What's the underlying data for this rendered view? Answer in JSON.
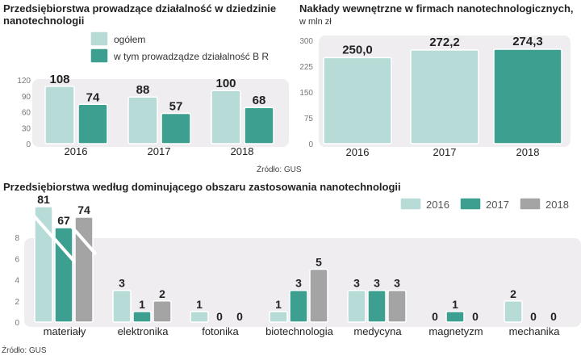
{
  "colors": {
    "light": "#b7dcd7",
    "dark": "#3c9f8f",
    "grey": "#a4a4a4",
    "panel": "#efedf0"
  },
  "chart_data": [
    {
      "type": "bar",
      "title": "Przedsiębiorstwa prowadzące działalność w dziedzinie nanotechnologii",
      "categories": [
        "2016",
        "2017",
        "2018"
      ],
      "series": [
        {
          "name": "ogółem",
          "values": [
            108,
            88,
            100
          ]
        },
        {
          "name": "w tym prowadządze działalność B R",
          "values": [
            74,
            57,
            68
          ]
        }
      ],
      "yticks": [
        "0",
        "30",
        "60",
        "90",
        "120"
      ],
      "ylim": [
        0,
        120
      ],
      "source": "Źródło: GUS"
    },
    {
      "type": "bar",
      "title": "Nakłady wewnętrzne w firmach nanotechnologicznych,",
      "subtitle": "w mln zł",
      "categories": [
        "2016",
        "2017",
        "2018"
      ],
      "values": [
        250.0,
        272.2,
        274.3
      ],
      "labels": [
        "250,0",
        "272,2",
        "274,3"
      ],
      "yticks": [
        "0",
        "75",
        "150",
        "225",
        "300"
      ],
      "ylim": [
        0,
        300
      ]
    },
    {
      "type": "bar",
      "title": "Przedsiębiorstwa według dominującego obszaru zastosowania nanotechnologii",
      "categories": [
        "materiały",
        "elektronika",
        "fotonika",
        "biotechnologia",
        "medycyna",
        "magnetyzm",
        "mechanika"
      ],
      "series": [
        {
          "name": "2016",
          "values": [
            81,
            3,
            1,
            1,
            3,
            0,
            2
          ]
        },
        {
          "name": "2017",
          "values": [
            67,
            1,
            0,
            3,
            3,
            1,
            0
          ]
        },
        {
          "name": "2018",
          "values": [
            74,
            2,
            0,
            5,
            3,
            0,
            0
          ]
        }
      ],
      "yticks": [
        "0",
        "2",
        "4",
        "6",
        "8"
      ],
      "ylim": [
        0,
        8
      ],
      "axis_break": true,
      "legend": "top-right",
      "source": "Źródło: GUS"
    }
  ]
}
